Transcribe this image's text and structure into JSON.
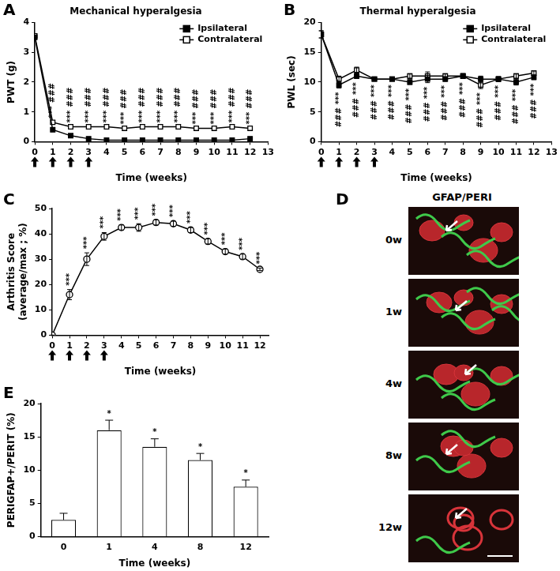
{
  "chart_data": [
    {
      "panel": "A",
      "type": "line",
      "title": "Mechanical hyperalgesia",
      "x_label": "Time (weeks)",
      "y_label": "PWT (g)",
      "x": [
        0,
        1,
        2,
        3,
        4,
        5,
        6,
        7,
        8,
        9,
        10,
        11,
        12
      ],
      "xlim": [
        0,
        13
      ],
      "xticks": [
        0,
        1,
        2,
        3,
        4,
        5,
        6,
        7,
        8,
        9,
        10,
        11,
        12,
        13
      ],
      "ylim": [
        0,
        4
      ],
      "yticks": [
        0,
        1,
        2,
        3,
        4
      ],
      "grid": false,
      "legend": "upper right",
      "series": [
        {
          "name": "Ipsilateral",
          "color": "#000000",
          "marker": "square",
          "values": [
            3.5,
            0.4,
            0.2,
            0.1,
            0.05,
            0.05,
            0.05,
            0.05,
            0.05,
            0.05,
            0.05,
            0.05,
            0.1
          ]
        },
        {
          "name": "Contralateral",
          "color": "#000000",
          "marker": "open_square",
          "values": [
            3.55,
            0.65,
            0.5,
            0.5,
            0.5,
            0.45,
            0.5,
            0.5,
            0.5,
            0.45,
            0.45,
            0.5,
            0.45
          ]
        }
      ],
      "annotations": [
        null,
        [
          "***",
          "###"
        ],
        [
          "***",
          "###"
        ],
        [
          "***",
          "###"
        ],
        [
          "***",
          "###"
        ],
        [
          "***",
          "###"
        ],
        [
          "***",
          "###"
        ],
        [
          "***",
          "###"
        ],
        [
          "***",
          "###"
        ],
        [
          "***",
          "###"
        ],
        [
          "***",
          "###"
        ],
        [
          "***",
          "###"
        ],
        [
          "***",
          "###"
        ]
      ],
      "arrows": [
        0,
        1,
        2,
        3
      ]
    },
    {
      "panel": "B",
      "type": "line",
      "title": "Thermal hyperalgesia",
      "x_label": "Time (weeks)",
      "y_label": "PWL (sec)",
      "x": [
        0,
        1,
        2,
        3,
        4,
        5,
        6,
        7,
        8,
        9,
        10,
        11,
        12
      ],
      "xlim": [
        0,
        13
      ],
      "xticks": [
        0,
        1,
        2,
        3,
        4,
        5,
        6,
        7,
        8,
        9,
        10,
        11,
        12,
        13
      ],
      "ylim": [
        0,
        20
      ],
      "yticks": [
        0,
        5,
        10,
        15,
        20
      ],
      "grid": false,
      "legend": "upper right",
      "series": [
        {
          "name": "Ipsilateral",
          "color": "#000000",
          "marker": "square",
          "values": [
            18,
            9.5,
            11,
            10.5,
            10.5,
            10,
            10.5,
            10.5,
            11,
            10.5,
            10.5,
            10,
            10.8
          ],
          "errors": [
            0.6,
            0.5,
            0.4,
            0.3,
            0.3,
            0.4,
            0.6,
            0.4,
            0.4,
            0.5,
            0.4,
            0.5,
            0.4
          ]
        },
        {
          "name": "Contralateral",
          "color": "#000000",
          "marker": "open_square",
          "values": [
            18,
            10.5,
            12,
            10.5,
            10.5,
            11,
            11,
            11,
            11,
            9.5,
            10.5,
            11,
            11.5
          ],
          "errors": [
            0.6,
            0.5,
            0.5,
            0.3,
            0.3,
            0.4,
            0.7,
            0.4,
            0.4,
            0.6,
            0.4,
            0.4,
            0.4
          ]
        }
      ],
      "annotations": [
        null,
        [
          "***",
          "###"
        ],
        [
          "***",
          "###"
        ],
        [
          "***",
          "###"
        ],
        [
          "***",
          "###"
        ],
        [
          "***",
          "###"
        ],
        [
          "***",
          "###"
        ],
        [
          "***",
          "###"
        ],
        [
          "***",
          "###"
        ],
        [
          "***",
          "###"
        ],
        [
          "***",
          "###"
        ],
        [
          "***",
          "###"
        ],
        [
          "***",
          "###"
        ]
      ],
      "arrows": [
        0,
        1,
        2,
        3
      ]
    },
    {
      "panel": "C",
      "type": "line",
      "x_label": "Time (weeks)",
      "y_label": [
        "Arthritis Score",
        "(average/max ; %)"
      ],
      "x": [
        0,
        1,
        2,
        3,
        4,
        5,
        6,
        7,
        8,
        9,
        10,
        11,
        12
      ],
      "xlim": [
        0,
        12.5
      ],
      "xticks": [
        0,
        1,
        2,
        3,
        4,
        5,
        6,
        7,
        8,
        9,
        10,
        11,
        12
      ],
      "ylim": [
        0,
        50
      ],
      "yticks": [
        0,
        10,
        20,
        30,
        40,
        50
      ],
      "grid": false,
      "series": [
        {
          "color": "#000000",
          "marker": "open_circle",
          "values": [
            0,
            16,
            30,
            39,
            42.5,
            42.5,
            44.5,
            44,
            41.5,
            37,
            33,
            31,
            26
          ],
          "errors": [
            0,
            2,
            2.5,
            1.5,
            1,
            1.5,
            1,
            1,
            1,
            1,
            1,
            1,
            0.5
          ]
        }
      ],
      "annotations": [
        null,
        [
          "***"
        ],
        [
          "***"
        ],
        [
          "***"
        ],
        [
          "***"
        ],
        [
          "***"
        ],
        [
          "***"
        ],
        [
          "***"
        ],
        [
          "***"
        ],
        [
          "***"
        ],
        [
          "***"
        ],
        [
          "***"
        ],
        [
          "***"
        ]
      ],
      "arrows": [
        0,
        1,
        2,
        3
      ]
    },
    {
      "panel": "E",
      "type": "bar",
      "x_label": "Time (weeks)",
      "y_label": "PERIGFAP+/PERIT (%)",
      "categories": [
        "0",
        "1",
        "4",
        "8",
        "12"
      ],
      "values": [
        2.5,
        16,
        13.5,
        11.5,
        7.5
      ],
      "errors": [
        1,
        1.5,
        1.2,
        1,
        1
      ],
      "color": "#ffffff",
      "ylim": [
        0,
        20
      ],
      "yticks": [
        0,
        5,
        10,
        15,
        20
      ],
      "grid": false,
      "annotations": [
        null,
        [
          "*"
        ],
        [
          "*"
        ],
        [
          "*"
        ],
        [
          "*"
        ]
      ]
    }
  ],
  "image_panel": {
    "panel": "D",
    "title": "GFAP/PERI",
    "rows": [
      "0w",
      "1w",
      "4w",
      "8w",
      "12w"
    ]
  }
}
